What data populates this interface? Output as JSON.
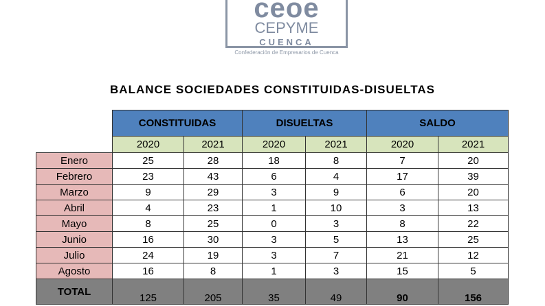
{
  "logo": {
    "main": "ceoe",
    "sub": "CEPYME",
    "city": "CUENCA",
    "tagline": "Confederación de Empresarios de Cuenca"
  },
  "title": "BALANCE SOCIEDADES CONSTITUIDAS-DISUELTAS",
  "table": {
    "groups": [
      "CONSTITUIDAS",
      "DISUELTAS",
      "SALDO"
    ],
    "years": [
      "2020",
      "2021",
      "2020",
      "2021",
      "2020",
      "2021"
    ],
    "rows": [
      {
        "month": "Enero",
        "values": [
          "25",
          "28",
          "18",
          "8",
          "7",
          "20"
        ]
      },
      {
        "month": "Febrero",
        "values": [
          "23",
          "43",
          "6",
          "4",
          "17",
          "39"
        ]
      },
      {
        "month": "Marzo",
        "values": [
          "9",
          "29",
          "3",
          "9",
          "6",
          "20"
        ]
      },
      {
        "month": "Abril",
        "values": [
          "4",
          "23",
          "1",
          "10",
          "3",
          "13"
        ]
      },
      {
        "month": "Mayo",
        "values": [
          "8",
          "25",
          "0",
          "3",
          "8",
          "22"
        ]
      },
      {
        "month": "Junio",
        "values": [
          "16",
          "30",
          "3",
          "5",
          "13",
          "25"
        ]
      },
      {
        "month": "Julio",
        "values": [
          "24",
          "19",
          "3",
          "7",
          "21",
          "12"
        ]
      },
      {
        "month": "Agosto",
        "values": [
          "16",
          "8",
          "1",
          "3",
          "15",
          "5"
        ]
      }
    ],
    "total": {
      "label": "TOTAL",
      "values": [
        "125",
        "205",
        "35",
        "49",
        "90",
        "156"
      ]
    }
  },
  "colors": {
    "header_blue": "#4f81bd",
    "year_green": "#d7e4bc",
    "month_pink": "#e6b9b8",
    "total_gray": "#808080"
  }
}
